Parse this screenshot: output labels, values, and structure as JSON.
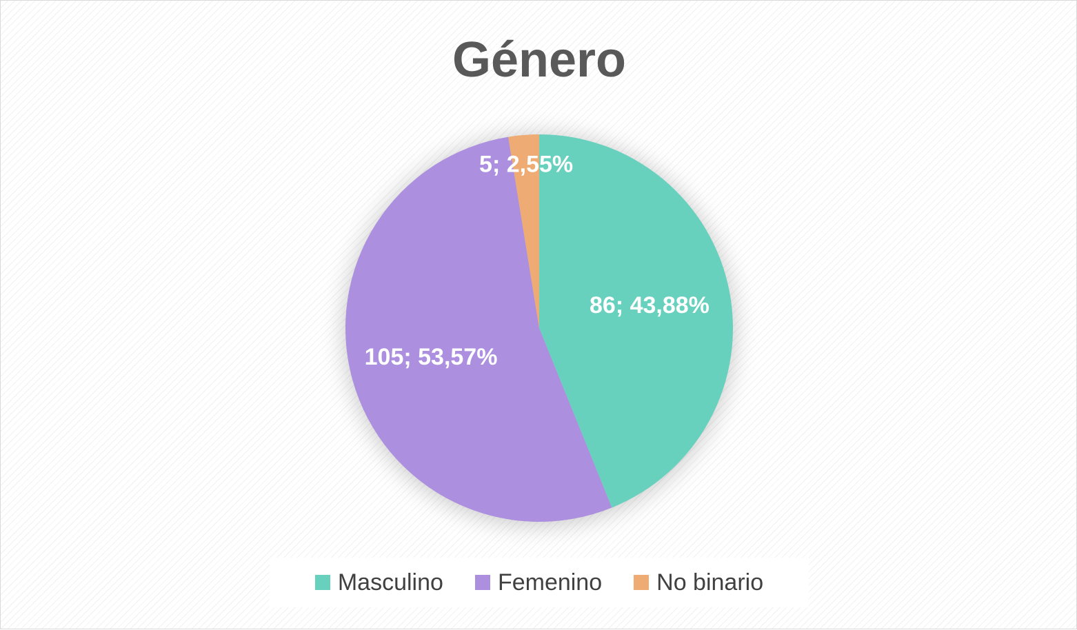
{
  "chart_data": {
    "type": "pie",
    "title": "Género",
    "categories": [
      "Masculino",
      "Femenino",
      "No binario"
    ],
    "values": [
      86,
      105,
      5
    ],
    "percentages": [
      "43,88%",
      "53,57%",
      "2,55%"
    ],
    "data_labels": [
      "86; 43,88%",
      "105; 53,57%",
      "5; 2,55%"
    ],
    "colors": [
      "#67d1bd",
      "#ac90df",
      "#efab74"
    ],
    "label_color": "#ffffff",
    "legend_position": "bottom"
  }
}
